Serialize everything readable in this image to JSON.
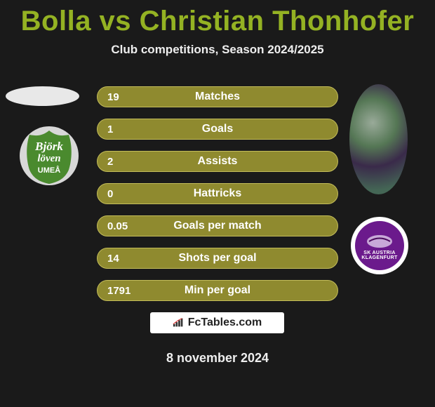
{
  "title_color": "#94b223",
  "title": "Bolla vs Christian Thonhofer",
  "subtitle": "Club competitions, Season 2024/2025",
  "bar_color": "#8f8a2f",
  "border_color": "#c4bd5a",
  "stats": [
    {
      "value_left": "19",
      "label": "Matches"
    },
    {
      "value_left": "1",
      "label": "Goals"
    },
    {
      "value_left": "2",
      "label": "Assists"
    },
    {
      "value_left": "0",
      "label": "Hattricks"
    },
    {
      "value_left": "0.05",
      "label": "Goals per match"
    },
    {
      "value_left": "14",
      "label": "Shots per goal"
    },
    {
      "value_left": "1791",
      "label": "Min per goal"
    }
  ],
  "badge_left": {
    "bg_color": "#4a8a2e",
    "line1": "Björk",
    "line2": "löven",
    "line3": "UMEÅ"
  },
  "badge_right": {
    "inner_color": "#6b1a8c",
    "line1": "SK AUSTRIA",
    "line2": "KLAGENFURT"
  },
  "fctables_label": "FcTables.com",
  "date": "8 november 2024"
}
